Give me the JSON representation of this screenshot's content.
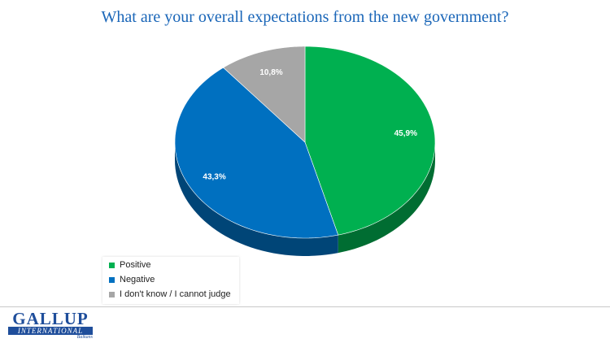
{
  "chart_data": {
    "type": "pie",
    "title": "What are your overall expectations from the new government?",
    "slices": [
      {
        "label": "Positive",
        "value": 45.9,
        "value_text": "45,9%",
        "color": "#00b050"
      },
      {
        "label": "Negative",
        "value": 43.3,
        "value_text": "43,3%",
        "color": "#0070c0"
      },
      {
        "label": "I don't know / I cannot judge",
        "value": 10.8,
        "value_text": "10,8%",
        "color": "#a6a6a6"
      }
    ],
    "legend_position": "bottom-left",
    "style": "3d"
  },
  "logo": {
    "name": "GALLUP",
    "bar_text": "INTERNATIONAL",
    "sub": "Balkans",
    "color": "#1f4e9b"
  }
}
